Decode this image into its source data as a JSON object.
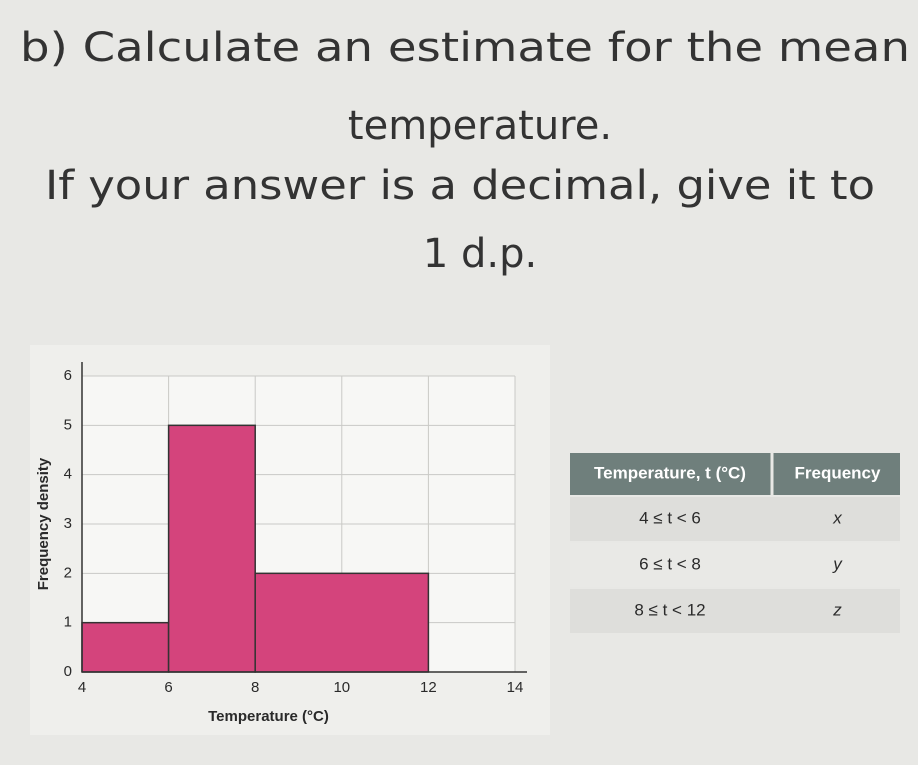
{
  "question": {
    "lines": [
      "b) Calculate an estimate for the mean",
      "temperature.",
      "If your answer is a decimal, give it to",
      "1 d.p."
    ]
  },
  "chart_data": {
    "type": "histogram",
    "x_label": "Temperature (°C)",
    "y_label": "Frequency density",
    "bins": [
      4,
      6,
      8,
      12
    ],
    "values": [
      1,
      5,
      2
    ],
    "color": "#d4447c",
    "xlim": [
      4,
      14
    ],
    "xticks": [
      4,
      6,
      8,
      10,
      12,
      14
    ],
    "ylim": [
      0,
      6
    ],
    "yticks": [
      0,
      1,
      2,
      3,
      4,
      5,
      6
    ],
    "grid": true
  },
  "table": {
    "header": [
      "Temperature, t (°C)",
      "Frequency"
    ],
    "rows": [
      [
        "4 ≤ t < 6",
        "x"
      ],
      [
        "6 ≤ t < 8",
        "y"
      ],
      [
        "8 ≤ t < 12",
        "z"
      ]
    ]
  }
}
